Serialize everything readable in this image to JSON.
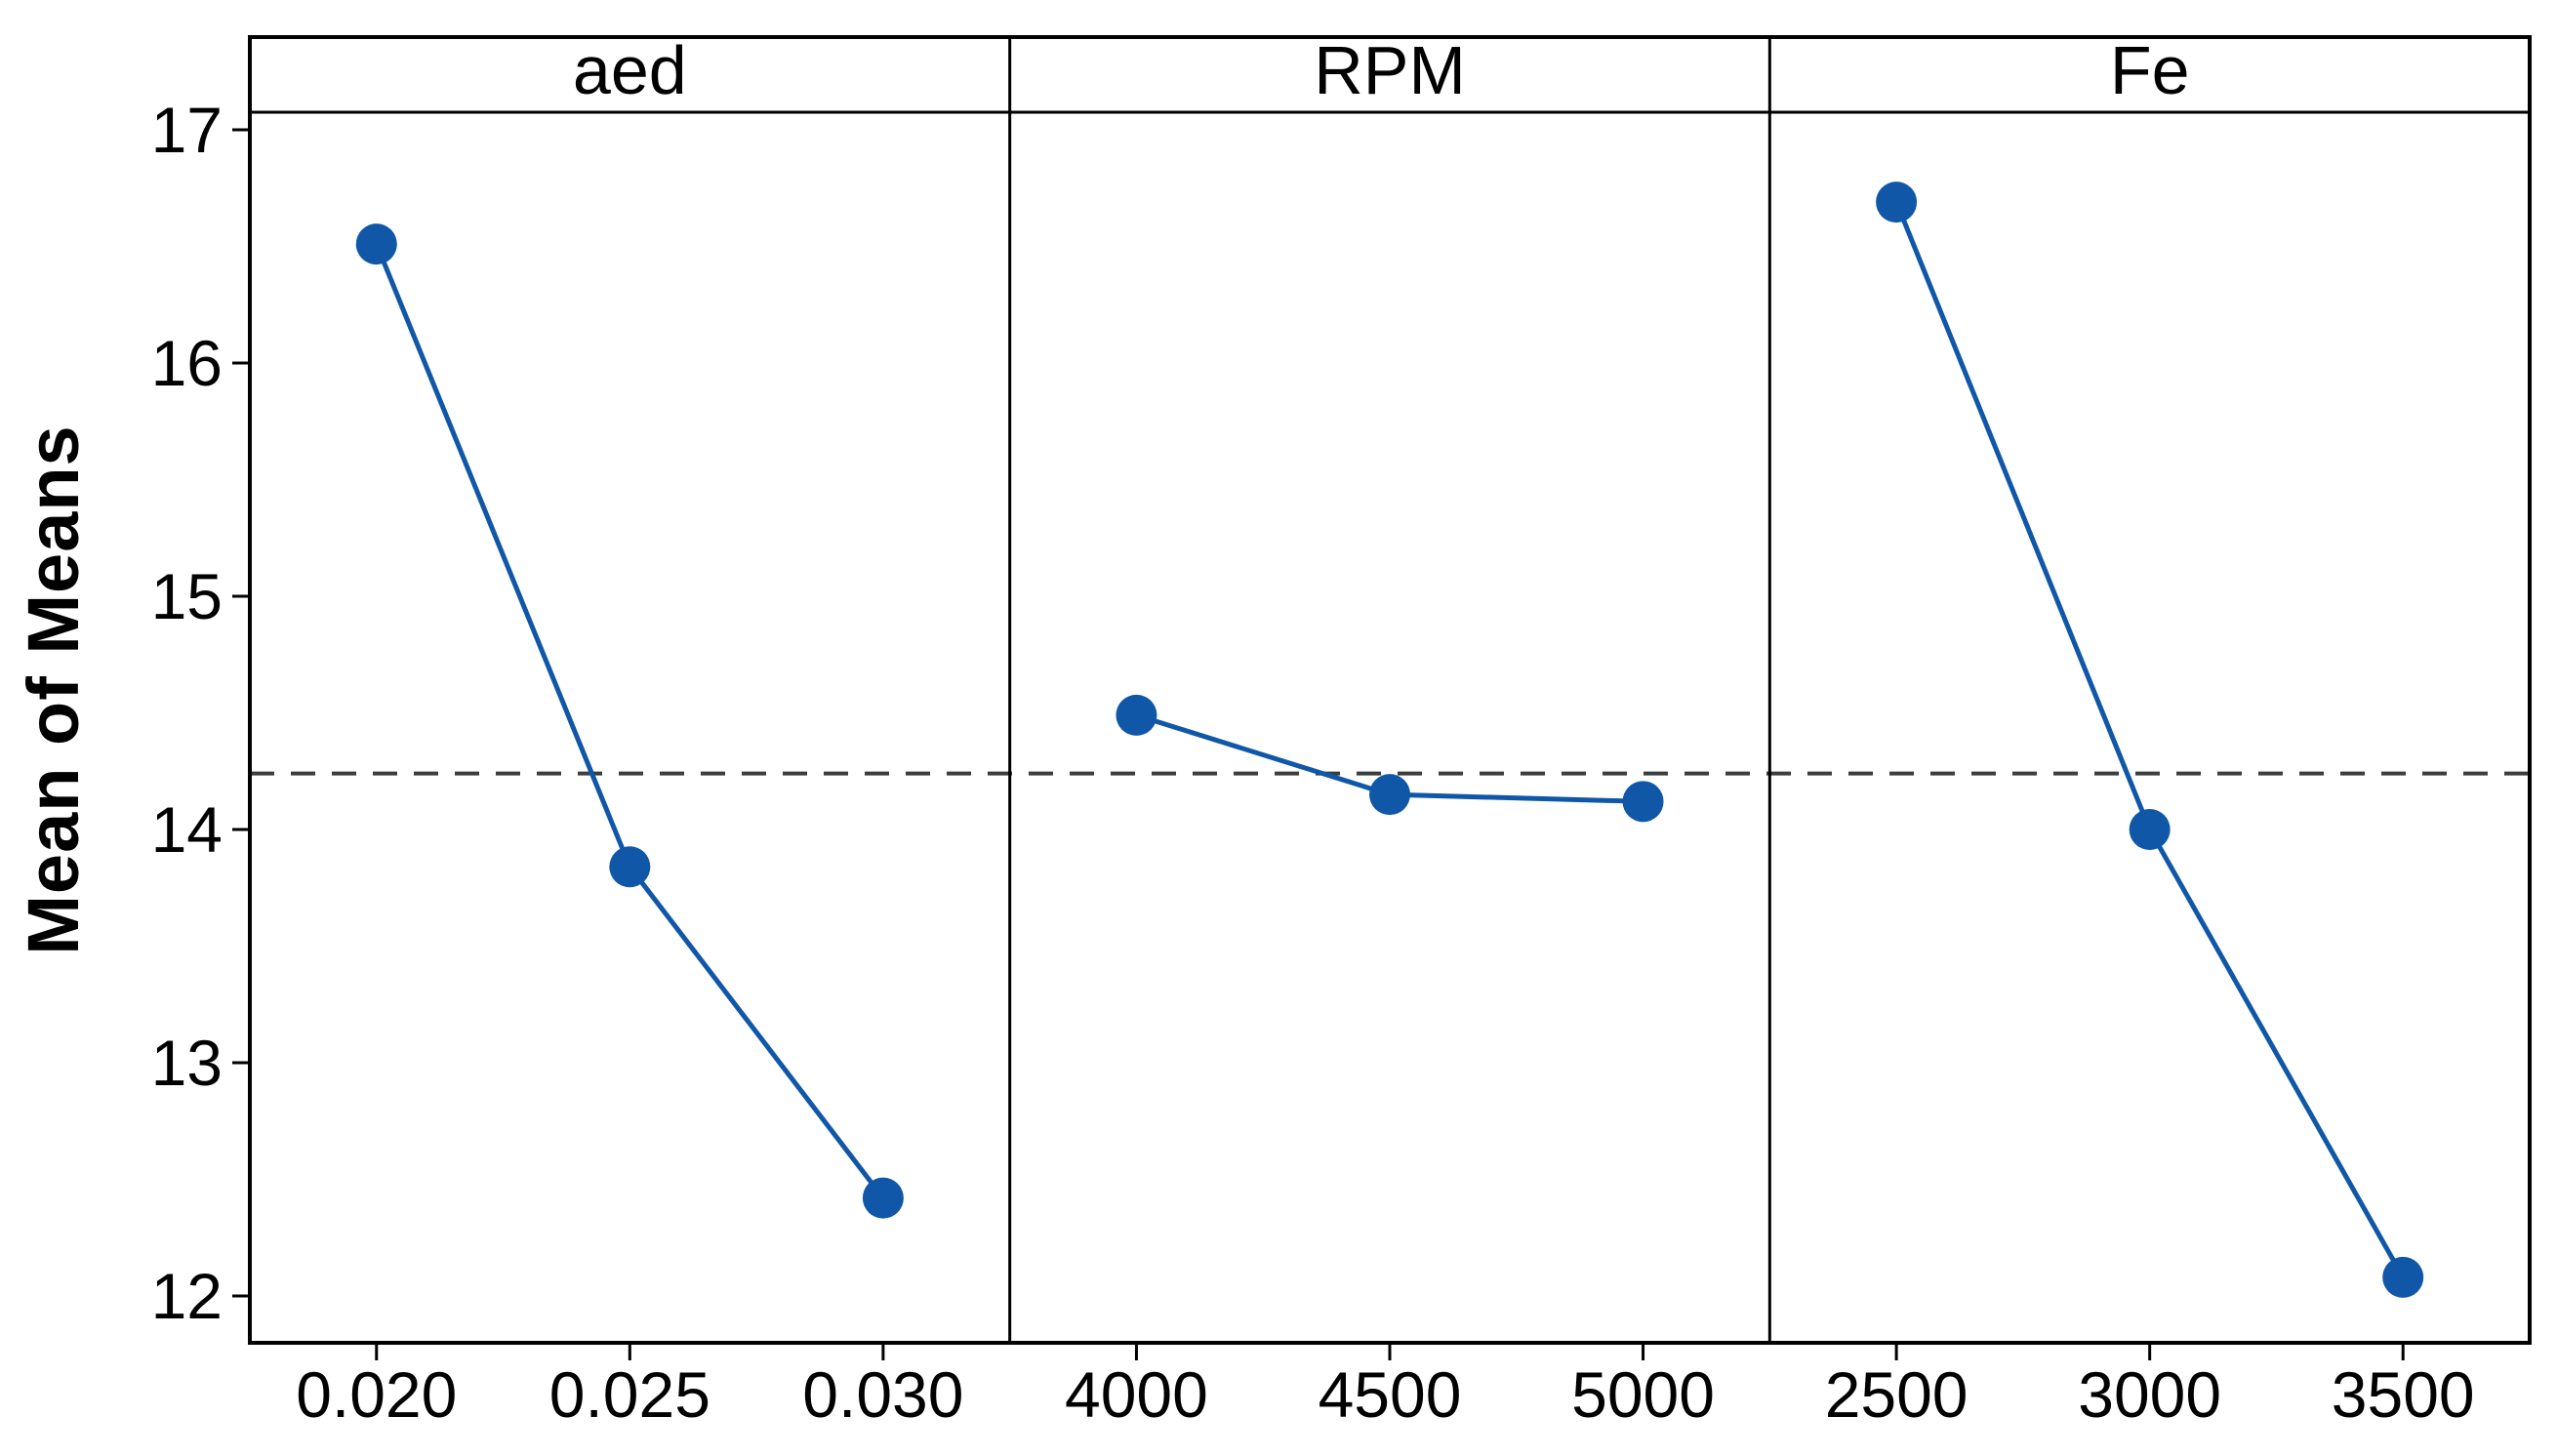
{
  "chart_data": {
    "type": "line",
    "title": "",
    "subtitle": "",
    "ylabel": "Mean of Means",
    "xlabel": "",
    "ylim": [
      11.79,
      17.4
    ],
    "yticks": [
      17,
      16,
      15,
      14,
      13,
      12
    ],
    "grid": false,
    "legend": "none",
    "reference_line": {
      "value": 14.24,
      "style": "dashed",
      "color": "#3d3d3d"
    },
    "colors": {
      "series": "#1057A8",
      "frame": "#000000",
      "text": "#000000",
      "background": "#ffffff"
    },
    "marker": {
      "shape": "circle",
      "radius_px": 21
    },
    "panels": [
      {
        "label": "aed",
        "categories": [
          "0.020",
          "0.025",
          "0.030"
        ],
        "values": [
          16.51,
          13.84,
          12.42
        ]
      },
      {
        "label": "RPM",
        "categories": [
          "4000",
          "4500",
          "5000"
        ],
        "values": [
          14.49,
          14.15,
          14.12
        ]
      },
      {
        "label": "Fe",
        "categories": [
          "2500",
          "3000",
          "3500"
        ],
        "values": [
          16.69,
          14.0,
          12.08
        ]
      }
    ]
  }
}
